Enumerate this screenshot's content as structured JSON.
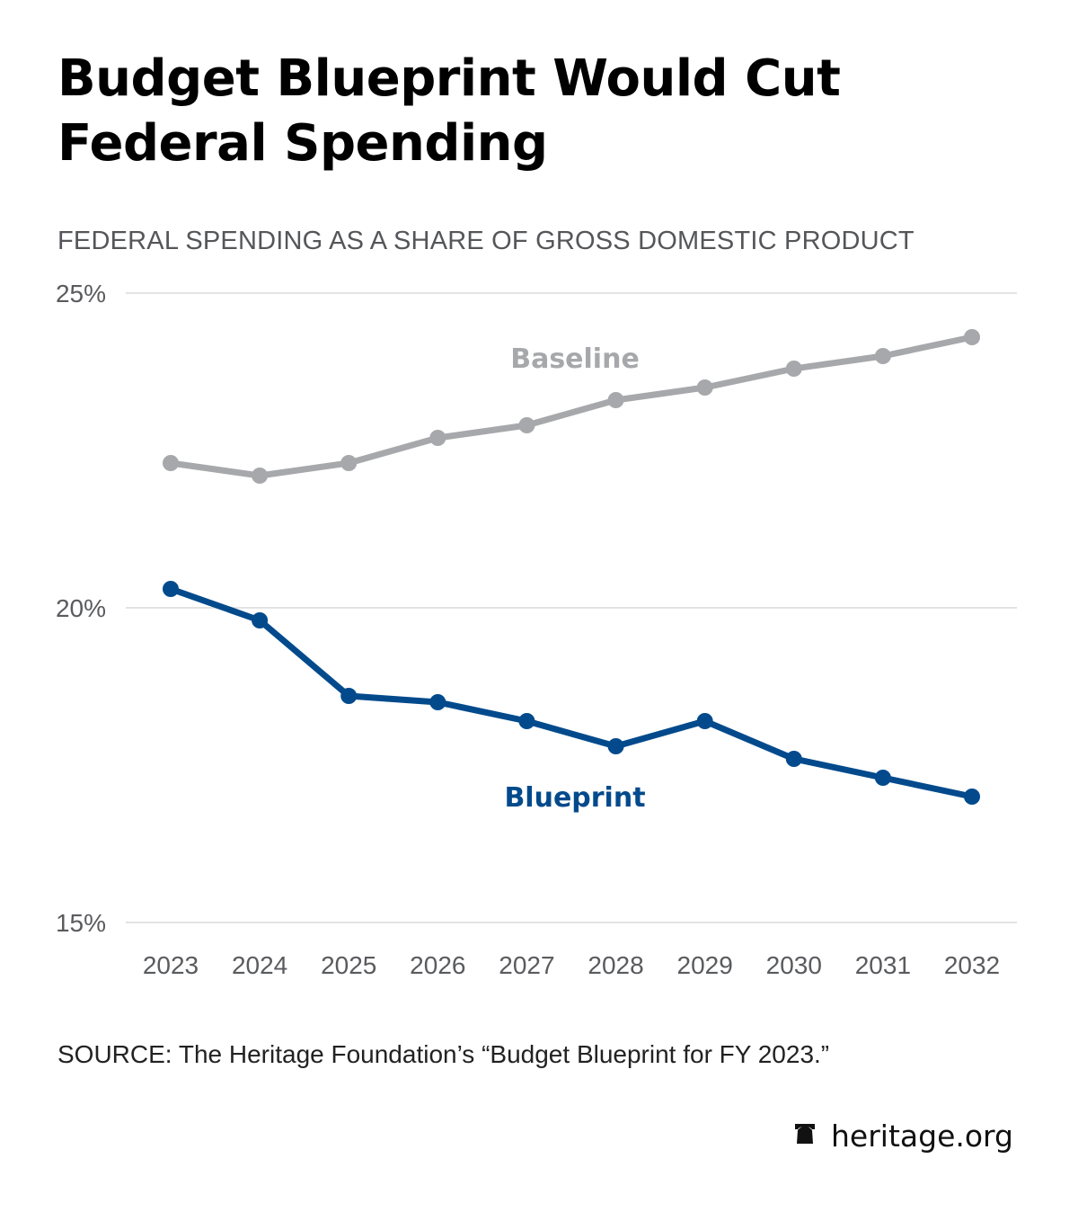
{
  "header": {
    "title": "Budget Blueprint Would Cut Federal Spending",
    "subtitle": "FEDERAL SPENDING AS A SHARE OF GROSS DOMESTIC PRODUCT"
  },
  "footer": {
    "source": "SOURCE: The Heritage Foundation’s “Budget Blueprint for FY 2023.”",
    "brand_icon": "liberty-bell-icon",
    "brand_text": "heritage.org"
  },
  "colors": {
    "baseline": "#a7a8ab",
    "blueprint": "#024a8c",
    "grid": "#e3e3e3",
    "tick_text": "#5a5b5e"
  },
  "chart_data": {
    "type": "line",
    "title": "Budget Blueprint Would Cut Federal Spending",
    "subtitle": "FEDERAL SPENDING AS A SHARE OF GROSS DOMESTIC PRODUCT",
    "xlabel": "",
    "ylabel": "",
    "x": [
      "2023",
      "2024",
      "2025",
      "2026",
      "2027",
      "2028",
      "2029",
      "2030",
      "2031",
      "2032"
    ],
    "ylim": [
      15,
      25
    ],
    "yticks": [
      15,
      20,
      25
    ],
    "ytick_labels": [
      "15%",
      "20%",
      "25%"
    ],
    "grid": true,
    "legend": "inline labels",
    "series": [
      {
        "name": "Baseline",
        "color": "#a7a8ab",
        "values": [
          22.3,
          22.1,
          22.3,
          22.7,
          22.9,
          23.3,
          23.5,
          23.8,
          24.0,
          24.3
        ],
        "label_anchor_year": "2027.5"
      },
      {
        "name": "Blueprint",
        "color": "#024a8c",
        "values": [
          20.3,
          19.8,
          18.6,
          18.5,
          18.2,
          17.8,
          18.2,
          17.6,
          17.3,
          17.0
        ],
        "label_anchor_year": "2027.5"
      }
    ],
    "source": "SOURCE: The Heritage Foundation’s “Budget Blueprint for FY 2023.”"
  }
}
